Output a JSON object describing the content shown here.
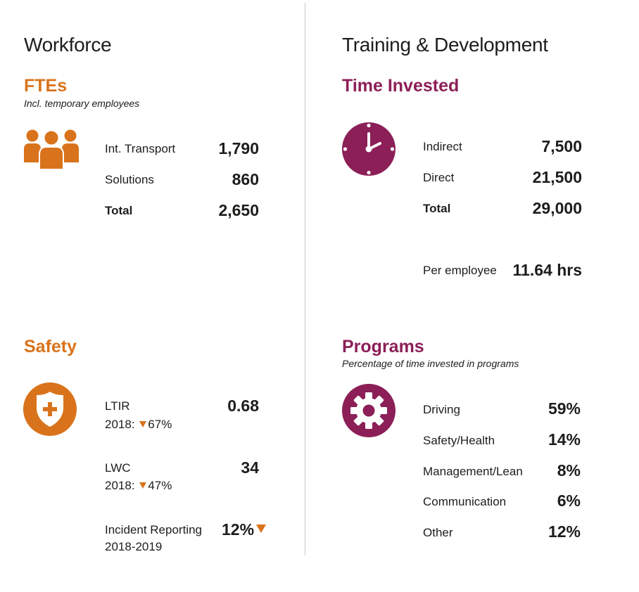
{
  "workforce": {
    "title": "Workforce",
    "ftes": {
      "title": "FTEs",
      "subtitle": "Incl. temporary employees",
      "rows": [
        {
          "label": "Int. Transport",
          "value": "1,790"
        },
        {
          "label": "Solutions",
          "value": "860"
        },
        {
          "label": "Total",
          "value": "2,650"
        }
      ]
    },
    "safety": {
      "title": "Safety",
      "ltir": {
        "label": "LTIR",
        "value": "0.68",
        "compare": "2018:",
        "change": "67%"
      },
      "lwc": {
        "label": "LWC",
        "value": "34",
        "compare": "2018:",
        "change": "47%"
      },
      "incident": {
        "label": "Incident Reporting",
        "period": "2018-2019",
        "value": "12%"
      }
    }
  },
  "training": {
    "title": "Training & Development",
    "time": {
      "title": "Time Invested",
      "rows": [
        {
          "label": "Indirect",
          "value": "7,500"
        },
        {
          "label": "Direct",
          "value": "21,500"
        },
        {
          "label": "Total",
          "value": "29,000"
        }
      ],
      "per_employee_label": "Per employee",
      "per_employee_value": "11.64 hrs"
    },
    "programs": {
      "title": "Programs",
      "subtitle": "Percentage of time invested in programs",
      "rows": [
        {
          "label": "Driving",
          "value": "59%"
        },
        {
          "label": "Safety/Health",
          "value": "14%"
        },
        {
          "label": "Management/Lean",
          "value": "8%"
        },
        {
          "label": "Communication",
          "value": "6%"
        },
        {
          "label": "Other",
          "value": "12%"
        }
      ]
    }
  },
  "colors": {
    "orange": "#d9731b",
    "purple": "#8c1f57",
    "text": "#1d1d1b",
    "divider": "#c8c8c8"
  },
  "icons": {
    "ftes": "people-group-icon",
    "safety": "shield-plus-icon",
    "time": "clock-icon",
    "programs": "gear-icon"
  }
}
